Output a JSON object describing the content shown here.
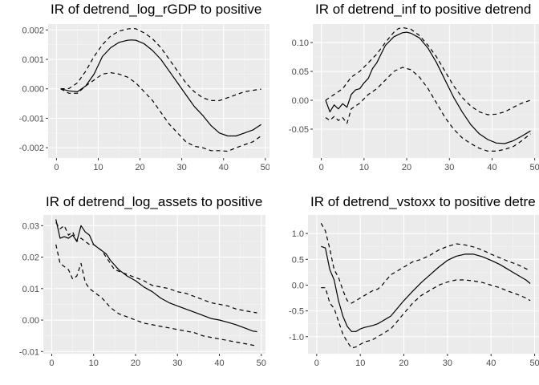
{
  "chart_data": [
    {
      "type": "line",
      "title": "IR of detrend_log_rGDP to positive",
      "xlim": [
        -2,
        51
      ],
      "ylim": [
        -0.00235,
        0.0022
      ],
      "xticks": [
        0,
        10,
        20,
        30,
        40,
        50
      ],
      "yticks": [
        -0.002,
        -0.001,
        0,
        0.001,
        0.002
      ],
      "ytick_labels": [
        "-0.002",
        "-0.001",
        "0.000",
        "0.001",
        "0.002"
      ],
      "series": [
        {
          "style": "solid",
          "x": [
            1,
            3,
            5,
            7,
            9,
            11,
            13,
            15,
            17,
            18,
            19,
            21,
            23,
            25,
            27,
            29,
            31,
            33,
            35,
            37,
            39,
            41,
            43,
            45,
            47,
            49
          ],
          "y": [
            0.0,
            -7e-05,
            -0.0001,
            0.0001,
            0.0005,
            0.0011,
            0.0014,
            0.00158,
            0.00165,
            0.00166,
            0.00165,
            0.00153,
            0.0013,
            0.001,
            0.0006,
            0.0002,
            -0.0002,
            -0.0006,
            -0.0009,
            -0.00125,
            -0.0015,
            -0.0016,
            -0.0016,
            -0.0015,
            -0.0014,
            -0.00121
          ]
        },
        {
          "style": "dashed",
          "x": [
            1,
            3,
            5,
            7,
            9,
            11,
            13,
            15,
            17,
            18,
            19,
            21,
            23,
            25,
            27,
            29,
            31,
            33,
            35,
            37,
            39,
            41,
            43,
            45,
            47,
            49
          ],
          "y": [
            0.0,
            1e-05,
            0.0002,
            0.0006,
            0.0011,
            0.0015,
            0.0018,
            0.00196,
            0.00203,
            0.00205,
            0.00204,
            0.0019,
            0.0017,
            0.0014,
            0.001,
            0.0006,
            0.0002,
            -0.0001,
            -0.0003,
            -0.0004,
            -0.0004,
            -0.0003,
            -0.0002,
            -0.0001,
            -5e-05,
            -1e-05
          ]
        },
        {
          "style": "dashed",
          "x": [
            1,
            3,
            5,
            7,
            9,
            11,
            13,
            15,
            17,
            19,
            21,
            23,
            25,
            27,
            29,
            31,
            33,
            35,
            37,
            39,
            41,
            43,
            45,
            47,
            49
          ],
          "y": [
            0.0,
            -0.00015,
            -0.00015,
            0.0001,
            0.0003,
            0.0005,
            0.00055,
            0.0005,
            0.0004,
            0.0002,
            -0.0001,
            -0.0004,
            -0.0008,
            -0.0012,
            -0.0015,
            -0.0018,
            -0.00195,
            -0.002,
            -0.0021,
            -0.0021,
            -0.00212,
            -0.002,
            -0.0019,
            -0.0018,
            -0.0016
          ]
        }
      ]
    },
    {
      "type": "line",
      "title": "IR of detrend_inf to positive detrend",
      "xlim": [
        -2,
        51
      ],
      "ylim": [
        -0.1,
        0.132
      ],
      "xticks": [
        0,
        10,
        20,
        30,
        40,
        50
      ],
      "yticks": [
        -0.05,
        0,
        0.05,
        0.1
      ],
      "ytick_labels": [
        "-0.05",
        "0.00",
        "0.05",
        "0.10"
      ],
      "series": [
        {
          "style": "solid",
          "x": [
            1,
            2,
            3,
            4,
            5,
            6,
            7,
            8,
            9,
            10,
            11,
            12,
            13,
            14,
            15,
            17,
            19,
            20,
            21,
            23,
            25,
            27,
            29,
            31,
            33,
            35,
            37,
            39,
            41,
            43,
            45,
            47,
            49
          ],
          "y": [
            0.0,
            -0.02,
            -0.008,
            -0.015,
            -0.006,
            -0.012,
            0.01,
            0.018,
            0.02,
            0.03,
            0.038,
            0.055,
            0.065,
            0.08,
            0.095,
            0.11,
            0.117,
            0.118,
            0.116,
            0.108,
            0.09,
            0.065,
            0.035,
            0.005,
            -0.02,
            -0.042,
            -0.058,
            -0.068,
            -0.074,
            -0.075,
            -0.07,
            -0.062,
            -0.053
          ]
        },
        {
          "style": "dashed",
          "x": [
            1,
            3,
            5,
            7,
            8,
            9,
            11,
            13,
            15,
            17,
            18,
            19,
            21,
            23,
            25,
            27,
            29,
            31,
            33,
            35,
            37,
            39,
            41,
            43,
            45,
            47,
            49
          ],
          "y": [
            0.0,
            0.01,
            0.02,
            0.04,
            0.045,
            0.05,
            0.065,
            0.08,
            0.1,
            0.118,
            0.124,
            0.126,
            0.123,
            0.112,
            0.095,
            0.075,
            0.05,
            0.025,
            0.005,
            -0.01,
            -0.02,
            -0.025,
            -0.024,
            -0.02,
            -0.012,
            -0.005,
            0.0
          ]
        },
        {
          "style": "dashed",
          "x": [
            1,
            2,
            3,
            4,
            5,
            6,
            7,
            8,
            9,
            11,
            13,
            15,
            17,
            19,
            21,
            23,
            25,
            27,
            29,
            31,
            33,
            35,
            37,
            39,
            41,
            43,
            45,
            47,
            49
          ],
          "y": [
            -0.03,
            -0.035,
            -0.028,
            -0.035,
            -0.03,
            -0.04,
            -0.015,
            -0.01,
            -0.005,
            0.01,
            0.02,
            0.035,
            0.05,
            0.057,
            0.053,
            0.04,
            0.02,
            -0.005,
            -0.03,
            -0.05,
            -0.065,
            -0.075,
            -0.083,
            -0.088,
            -0.088,
            -0.085,
            -0.08,
            -0.07,
            -0.058
          ]
        }
      ]
    },
    {
      "type": "line",
      "title": "IR of detrend_log_assets to positive",
      "xlim": [
        -2,
        51
      ],
      "ylim": [
        -0.0107,
        0.0334
      ],
      "xticks": [
        0,
        10,
        20,
        30,
        40,
        50
      ],
      "yticks": [
        -0.01,
        0,
        0.01,
        0.02,
        0.03
      ],
      "ytick_labels": [
        "-0.01",
        "0.00",
        "0.01",
        "0.02",
        "0.03"
      ],
      "series": [
        {
          "style": "solid",
          "x": [
            1,
            2,
            3,
            4,
            5,
            6,
            7,
            8,
            9,
            10,
            11,
            12,
            13,
            14,
            15,
            16,
            17,
            18,
            20,
            22,
            24,
            26,
            28,
            30,
            32,
            34,
            36,
            38,
            40,
            42,
            44,
            46,
            48,
            49
          ],
          "y": [
            0.032,
            0.026,
            0.0265,
            0.026,
            0.027,
            0.025,
            0.03,
            0.028,
            0.027,
            0.024,
            0.023,
            0.022,
            0.021,
            0.019,
            0.0175,
            0.016,
            0.015,
            0.014,
            0.0125,
            0.0105,
            0.009,
            0.007,
            0.0055,
            0.0045,
            0.0035,
            0.0025,
            0.0015,
            0.0005,
            0.0,
            -0.0007,
            -0.0015,
            -0.0025,
            -0.0035,
            -0.0037
          ]
        },
        {
          "style": "dashed",
          "x": [
            1,
            2,
            3,
            4,
            5,
            6,
            7,
            8,
            9,
            10,
            11,
            12,
            13,
            14,
            15,
            16,
            17,
            18,
            20,
            22,
            24,
            26,
            28,
            30,
            32,
            34,
            36,
            38,
            40,
            42,
            44,
            46,
            48,
            49
          ],
          "y": [
            0.031,
            0.029,
            0.03,
            0.027,
            0.028,
            0.025,
            0.026,
            0.025,
            0.024,
            0.024,
            0.023,
            0.022,
            0.02,
            0.018,
            0.016,
            0.0155,
            0.015,
            0.0145,
            0.0135,
            0.0125,
            0.011,
            0.0105,
            0.01,
            0.009,
            0.0085,
            0.0075,
            0.0065,
            0.0055,
            0.005,
            0.0045,
            0.0035,
            0.003,
            0.0025,
            0.0023
          ]
        },
        {
          "style": "dashed",
          "x": [
            1,
            2,
            3,
            4,
            5,
            6,
            7,
            8,
            9,
            10,
            11,
            12,
            13,
            14,
            15,
            16,
            17,
            18,
            20,
            22,
            24,
            26,
            28,
            30,
            32,
            34,
            36,
            38,
            40,
            42,
            44,
            46,
            48,
            49
          ],
          "y": [
            0.024,
            0.018,
            0.017,
            0.016,
            0.013,
            0.014,
            0.018,
            0.012,
            0.01,
            0.009,
            0.008,
            0.007,
            0.0055,
            0.004,
            0.003,
            0.002,
            0.0015,
            0.001,
            0.0,
            -0.001,
            -0.0015,
            -0.002,
            -0.0025,
            -0.003,
            -0.0035,
            -0.004,
            -0.005,
            -0.0055,
            -0.006,
            -0.0065,
            -0.007,
            -0.0075,
            -0.008,
            -0.0082
          ]
        }
      ]
    },
    {
      "type": "line",
      "title": "IR of detrend_vstoxx to positive detre",
      "xlim": [
        -2,
        51
      ],
      "ylim": [
        -1.33,
        1.36
      ],
      "xticks": [
        0,
        10,
        20,
        30,
        40,
        50
      ],
      "yticks": [
        -1,
        -0.5,
        0,
        0.5,
        1
      ],
      "ytick_labels": [
        "-1.0",
        "-0.5",
        "0.0",
        "0.5",
        "1.0"
      ],
      "series": [
        {
          "style": "solid",
          "x": [
            1,
            2,
            3,
            4,
            5,
            6,
            7,
            8,
            9,
            10,
            11,
            12,
            13,
            14,
            15,
            16,
            17,
            18,
            20,
            22,
            24,
            26,
            28,
            30,
            32,
            34,
            36,
            38,
            40,
            42,
            44,
            46,
            48,
            49
          ],
          "y": [
            0.75,
            0.72,
            0.3,
            0.1,
            -0.3,
            -0.6,
            -0.8,
            -0.9,
            -0.9,
            -0.85,
            -0.82,
            -0.8,
            -0.78,
            -0.75,
            -0.7,
            -0.65,
            -0.6,
            -0.5,
            -0.3,
            -0.12,
            0.05,
            0.2,
            0.35,
            0.48,
            0.56,
            0.6,
            0.6,
            0.55,
            0.48,
            0.4,
            0.3,
            0.2,
            0.1,
            0.03
          ]
        },
        {
          "style": "dashed",
          "x": [
            1,
            2,
            3,
            4,
            5,
            6,
            7,
            8,
            9,
            10,
            11,
            12,
            13,
            14,
            15,
            16,
            17,
            18,
            20,
            22,
            24,
            26,
            28,
            30,
            32,
            34,
            36,
            38,
            40,
            42,
            44,
            46,
            48,
            49
          ],
          "y": [
            1.2,
            1.05,
            0.7,
            0.3,
            0.15,
            -0.1,
            -0.3,
            -0.35,
            -0.3,
            -0.25,
            -0.2,
            -0.15,
            -0.1,
            -0.08,
            0.0,
            0.1,
            0.2,
            0.25,
            0.35,
            0.45,
            0.5,
            0.58,
            0.68,
            0.75,
            0.8,
            0.78,
            0.74,
            0.68,
            0.6,
            0.53,
            0.46,
            0.4,
            0.32,
            0.28
          ]
        },
        {
          "style": "dashed",
          "x": [
            1,
            2,
            3,
            4,
            5,
            6,
            7,
            8,
            9,
            10,
            11,
            12,
            13,
            14,
            15,
            16,
            17,
            18,
            20,
            22,
            24,
            26,
            28,
            30,
            32,
            34,
            36,
            38,
            40,
            42,
            44,
            46,
            48,
            49
          ],
          "y": [
            -0.05,
            -0.05,
            -0.35,
            -0.45,
            -0.7,
            -0.95,
            -1.1,
            -1.22,
            -1.2,
            -1.15,
            -1.1,
            -1.08,
            -1.05,
            -1.0,
            -0.95,
            -0.9,
            -0.85,
            -0.75,
            -0.55,
            -0.35,
            -0.2,
            -0.1,
            0.0,
            0.06,
            0.1,
            0.1,
            0.08,
            0.05,
            0.0,
            -0.05,
            -0.12,
            -0.18,
            -0.25,
            -0.3
          ]
        }
      ]
    }
  ]
}
